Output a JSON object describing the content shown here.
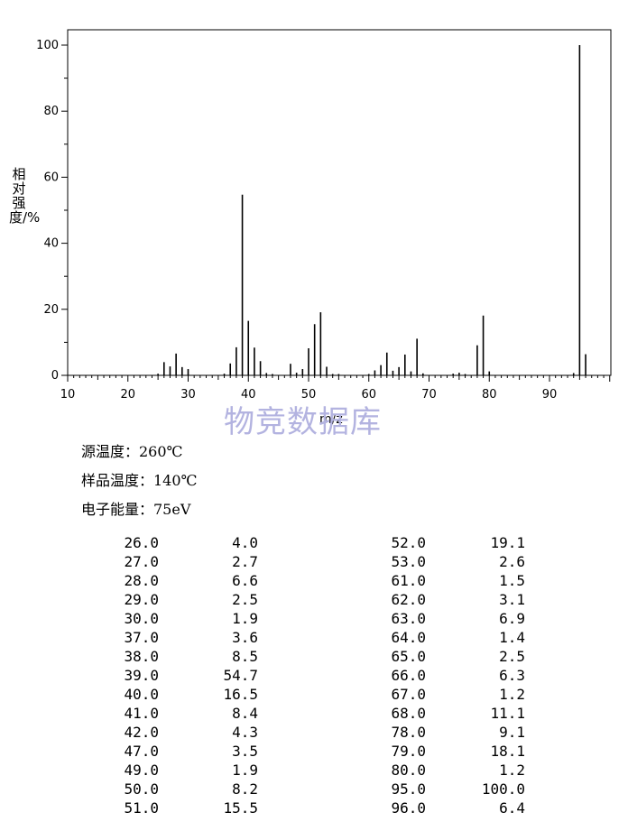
{
  "chart_data": {
    "type": "bar",
    "xlabel": "m/z",
    "ylabel": "相对强度/%",
    "xlim": [
      10,
      100
    ],
    "ylim": [
      0,
      100
    ],
    "xticks": [
      10,
      20,
      30,
      40,
      50,
      60,
      70,
      80,
      90
    ],
    "yticks": [
      0,
      20,
      40,
      60,
      80,
      100
    ],
    "x": [
      25,
      26,
      27,
      28,
      29,
      30,
      36,
      37,
      38,
      39,
      40,
      41,
      42,
      43,
      44,
      47,
      48,
      49,
      50,
      51,
      52,
      53,
      54,
      55,
      60,
      61,
      62,
      63,
      64,
      65,
      66,
      67,
      68,
      69,
      74,
      75,
      76,
      78,
      79,
      80,
      94,
      95,
      96
    ],
    "values": [
      0.5,
      4.0,
      2.7,
      6.6,
      2.5,
      1.9,
      0.5,
      3.6,
      8.5,
      54.7,
      16.5,
      8.4,
      4.3,
      0.7,
      0.4,
      3.5,
      0.8,
      1.9,
      8.2,
      15.5,
      19.1,
      2.6,
      0.4,
      0.4,
      0.4,
      1.5,
      3.1,
      6.9,
      1.4,
      2.5,
      6.3,
      1.2,
      11.1,
      0.6,
      0.5,
      0.8,
      0.4,
      9.1,
      18.1,
      1.2,
      0.7,
      100.0,
      6.4
    ]
  },
  "watermark": "物竞数据库",
  "conditions": [
    "源温度：260℃",
    "样品温度：140℃",
    "电子能量：75eV"
  ],
  "peaks": [
    [
      "26.0",
      "4.0"
    ],
    [
      "27.0",
      "2.7"
    ],
    [
      "28.0",
      "6.6"
    ],
    [
      "29.0",
      "2.5"
    ],
    [
      "30.0",
      "1.9"
    ],
    [
      "37.0",
      "3.6"
    ],
    [
      "38.0",
      "8.5"
    ],
    [
      "39.0",
      "54.7"
    ],
    [
      "40.0",
      "16.5"
    ],
    [
      "41.0",
      "8.4"
    ],
    [
      "42.0",
      "4.3"
    ],
    [
      "47.0",
      "3.5"
    ],
    [
      "49.0",
      "1.9"
    ],
    [
      "50.0",
      "8.2"
    ],
    [
      "51.0",
      "15.5"
    ],
    [
      "52.0",
      "19.1"
    ],
    [
      "53.0",
      "2.6"
    ],
    [
      "61.0",
      "1.5"
    ],
    [
      "62.0",
      "3.1"
    ],
    [
      "63.0",
      "6.9"
    ],
    [
      "64.0",
      "1.4"
    ],
    [
      "65.0",
      "2.5"
    ],
    [
      "66.0",
      "6.3"
    ],
    [
      "67.0",
      "1.2"
    ],
    [
      "68.0",
      "11.1"
    ],
    [
      "78.0",
      "9.1"
    ],
    [
      "79.0",
      "18.1"
    ],
    [
      "80.0",
      "1.2"
    ],
    [
      "95.0",
      "100.0"
    ],
    [
      "96.0",
      "6.4"
    ]
  ]
}
